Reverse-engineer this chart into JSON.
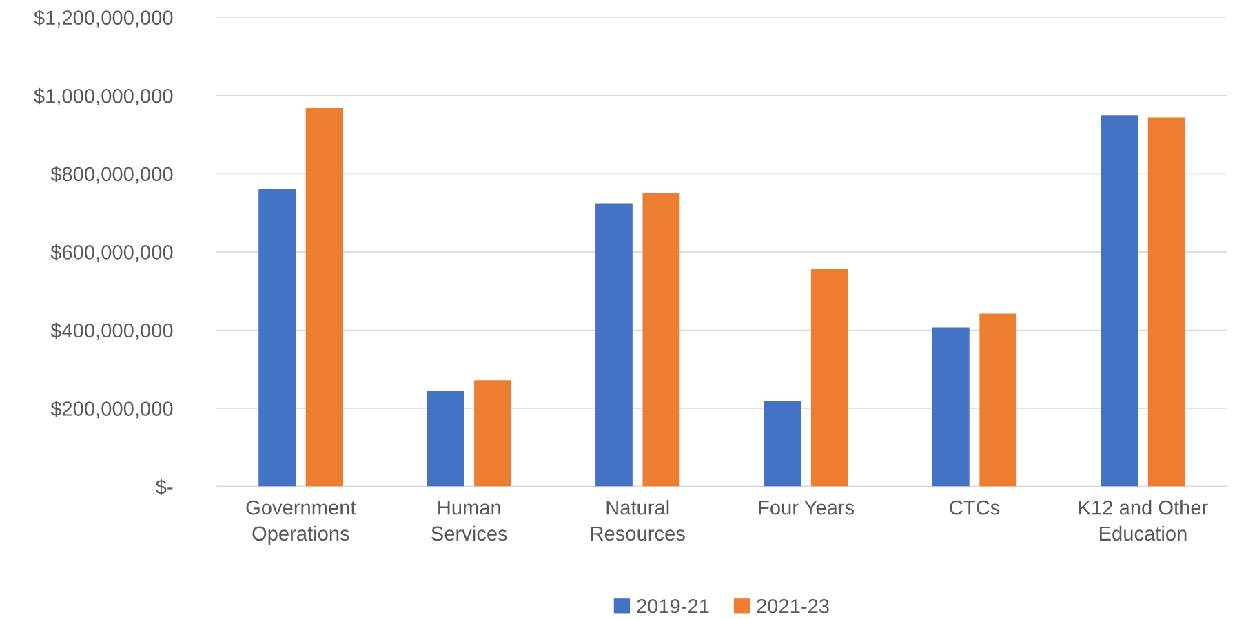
{
  "chart_data": {
    "type": "bar",
    "categories": [
      "Government\nOperations",
      "Human\nServices",
      "Natural\nResources",
      "Four Years",
      "CTCs",
      "K12 and Other\nEducation"
    ],
    "series": [
      {
        "name": "2019-21",
        "color": "#4472c4",
        "values": [
          760000000,
          244000000,
          724000000,
          218000000,
          407000000,
          950000000
        ]
      },
      {
        "name": "2021-23",
        "color": "#ed7d31",
        "values": [
          968000000,
          272000000,
          750000000,
          556000000,
          442000000,
          944000000
        ]
      }
    ],
    "ylim": [
      0,
      1200000000
    ],
    "yticks": [
      {
        "value": 0,
        "label": "$-"
      },
      {
        "value": 200000000,
        "label": "$200,000,000"
      },
      {
        "value": 400000000,
        "label": "$400,000,000"
      },
      {
        "value": 600000000,
        "label": "$600,000,000"
      },
      {
        "value": 800000000,
        "label": "$800,000,000"
      },
      {
        "value": 1000000000,
        "label": "$1,000,000,000"
      },
      {
        "value": 1200000000,
        "label": "$1,200,000,000"
      }
    ],
    "grid": "y",
    "legend": "bottom"
  }
}
